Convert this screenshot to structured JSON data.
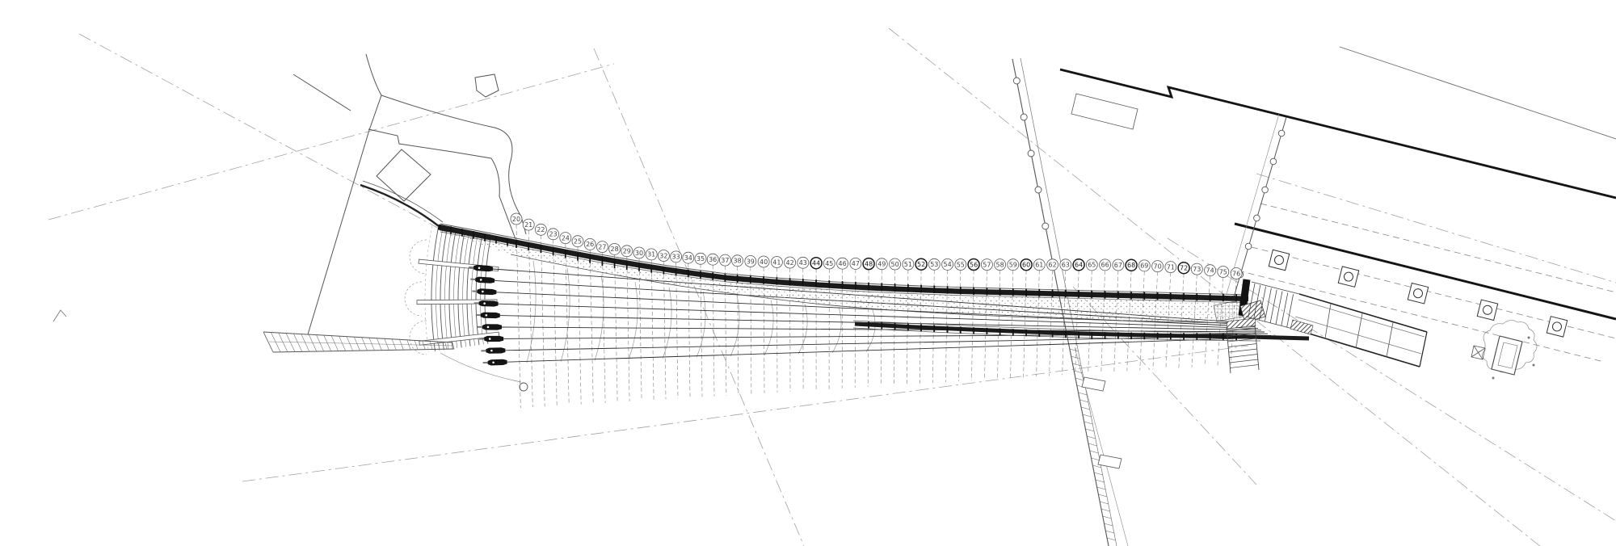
{
  "drawing": {
    "kind": "architectural-site-plan",
    "subject": "curved footbridge plan: cable fan with anchor row, stepped approach terraces at left, numbered transverse grid axes, quay-side arcade building with columns, stairs and ramp at right"
  },
  "palette": {
    "background": "#ffffff",
    "ink_dark": "#1b1b1b",
    "ink_main": "#4a4a4a",
    "ink_light": "#8a8a8a",
    "axis_line": "#a3a3a3",
    "stipple_dot": "#8f8f8f"
  },
  "grid_axes": {
    "labels": [
      "20",
      "21",
      "22",
      "23",
      "24",
      "25",
      "26",
      "27",
      "28",
      "29",
      "30",
      "31",
      "32",
      "33",
      "34",
      "35",
      "36",
      "37",
      "38",
      "39",
      "40",
      "41",
      "42",
      "43",
      "44",
      "45",
      "46",
      "47",
      "48",
      "49",
      "50",
      "51",
      "52",
      "53",
      "54",
      "55",
      "56",
      "57",
      "58",
      "59",
      "60",
      "61",
      "62",
      "63",
      "64",
      "65",
      "66",
      "67",
      "68",
      "69",
      "70",
      "71",
      "72",
      "73",
      "74",
      "75",
      "76"
    ],
    "bold_labels": [
      "44",
      "48",
      "52",
      "56",
      "60",
      "64",
      "68",
      "72"
    ]
  },
  "features": [
    "site-axis-lines",
    "roads-top-left",
    "stepped-approach-terraces",
    "terrace-trees",
    "approach-wall-path",
    "cable-anchor-row",
    "cable-fan",
    "transverse-ribs",
    "bridge-deck",
    "deck-walkway-stipple",
    "deck-lower-chord",
    "grid-axis-bubbles",
    "grid-leader-lines",
    "right-abutment",
    "upper-stair",
    "lower-stair",
    "access-ramp",
    "quay-wall",
    "quay-bollards",
    "arcade-building",
    "arcade-columns",
    "colonnade-edge",
    "monument-garden"
  ]
}
